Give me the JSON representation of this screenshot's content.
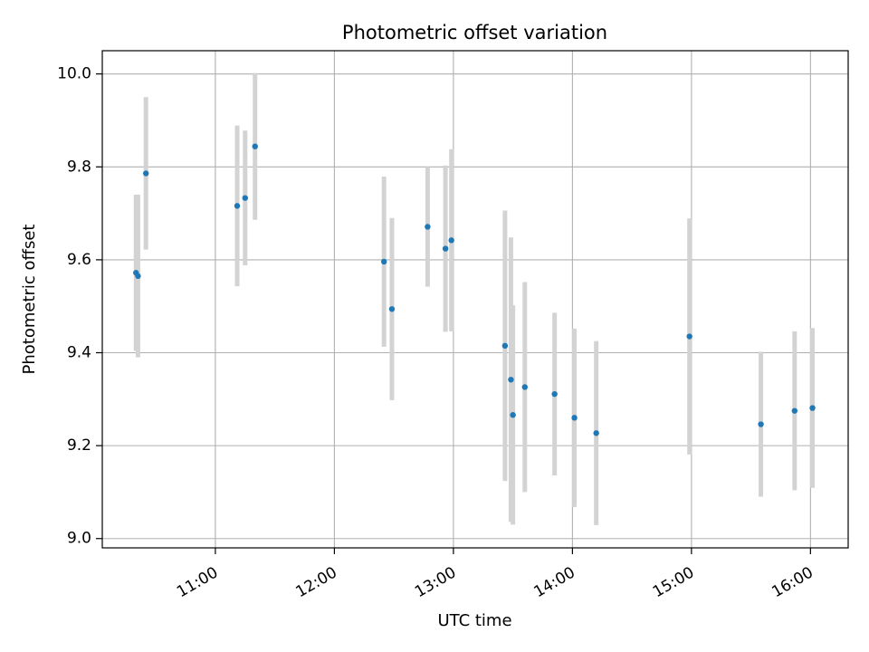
{
  "chart_data": {
    "type": "scatter",
    "title": "Photometric offset variation",
    "xlabel": "UTC time",
    "ylabel": "Photometric offset",
    "x_tick_labels": [
      "11:00",
      "12:00",
      "13:00",
      "14:00",
      "15:00",
      "16:00"
    ],
    "y_tick_labels": [
      "9.0",
      "9.2",
      "9.4",
      "9.6",
      "9.8",
      "10.0"
    ],
    "y_ticks": [
      9.0,
      9.2,
      9.4,
      9.6,
      9.8,
      10.0
    ],
    "x_ticks": [
      "11:00",
      "12:00",
      "13:00",
      "14:00",
      "15:00",
      "16:00"
    ],
    "xlim": [
      "10:03",
      "16:19"
    ],
    "ylim": [
      8.98,
      10.05
    ],
    "grid": true,
    "marker_color": "#1f77b4",
    "errorbar_color": "#d3d3d3",
    "points": [
      {
        "x": "10:20",
        "y": 9.572,
        "yerr": 0.168
      },
      {
        "x": "10:21",
        "y": 9.565,
        "yerr": 0.175
      },
      {
        "x": "10:25",
        "y": 9.786,
        "yerr": 0.164
      },
      {
        "x": "11:11",
        "y": 9.716,
        "yerr": 0.173
      },
      {
        "x": "11:15",
        "y": 9.733,
        "yerr": 0.145
      },
      {
        "x": "11:20",
        "y": 9.844,
        "yerr": 0.158
      },
      {
        "x": "12:25",
        "y": 9.596,
        "yerr": 0.183
      },
      {
        "x": "12:29",
        "y": 9.494,
        "yerr": 0.196
      },
      {
        "x": "12:47",
        "y": 9.671,
        "yerr": 0.129
      },
      {
        "x": "12:56",
        "y": 9.624,
        "yerr": 0.179
      },
      {
        "x": "12:59",
        "y": 9.642,
        "yerr": 0.196
      },
      {
        "x": "13:26",
        "y": 9.415,
        "yerr": 0.291
      },
      {
        "x": "13:29",
        "y": 9.342,
        "yerr": 0.306
      },
      {
        "x": "13:30",
        "y": 9.266,
        "yerr": 0.236
      },
      {
        "x": "13:36",
        "y": 9.326,
        "yerr": 0.226
      },
      {
        "x": "13:51",
        "y": 9.311,
        "yerr": 0.175
      },
      {
        "x": "14:01",
        "y": 9.26,
        "yerr": 0.192
      },
      {
        "x": "14:12",
        "y": 9.227,
        "yerr": 0.198
      },
      {
        "x": "14:59",
        "y": 9.435,
        "yerr": 0.254
      },
      {
        "x": "15:35",
        "y": 9.246,
        "yerr": 0.156
      },
      {
        "x": "15:52",
        "y": 9.275,
        "yerr": 0.171
      },
      {
        "x": "16:01",
        "y": 9.281,
        "yerr": 0.172
      }
    ]
  }
}
